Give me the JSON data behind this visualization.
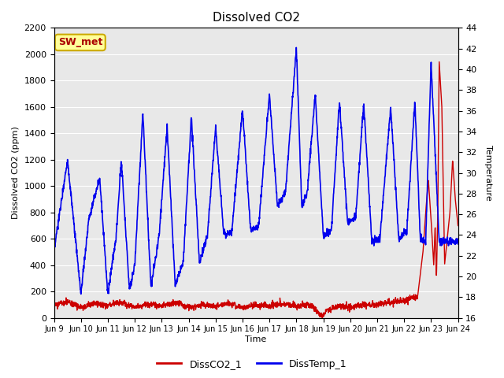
{
  "title": "Dissolved CO2",
  "xlabel": "Time",
  "ylabel_left": "Dissolved CO2 (ppm)",
  "ylabel_right": "Temperature",
  "background_color": "#ffffff",
  "plot_bg_color": "#e8e8e8",
  "grid_color": "#ffffff",
  "legend_label_co2": "DissCO2_1",
  "legend_label_temp": "DissTemp_1",
  "co2_color": "#cc0000",
  "temp_color": "#0000ee",
  "ylim_left": [
    0,
    2200
  ],
  "ylim_right": [
    16,
    44
  ],
  "yticks_left": [
    0,
    200,
    400,
    600,
    800,
    1000,
    1200,
    1400,
    1600,
    1800,
    2000,
    2200
  ],
  "yticks_right": [
    16,
    18,
    20,
    22,
    24,
    26,
    28,
    30,
    32,
    34,
    36,
    38,
    40,
    42,
    44
  ],
  "xtick_labels": [
    "Jun 9",
    "Jun 10",
    "Jun 11",
    "Jun 12",
    "Jun 13",
    "Jun 14",
    "Jun 15",
    "Jun 16",
    "Jun 17",
    "Jun 18",
    "Jun 19",
    "Jun 20",
    "Jun 21",
    "Jun 22",
    "Jun 23",
    "Jun 24"
  ],
  "annotation_text": "SW_met",
  "annotation_bg": "#ffff99",
  "annotation_border": "#ccaa00"
}
